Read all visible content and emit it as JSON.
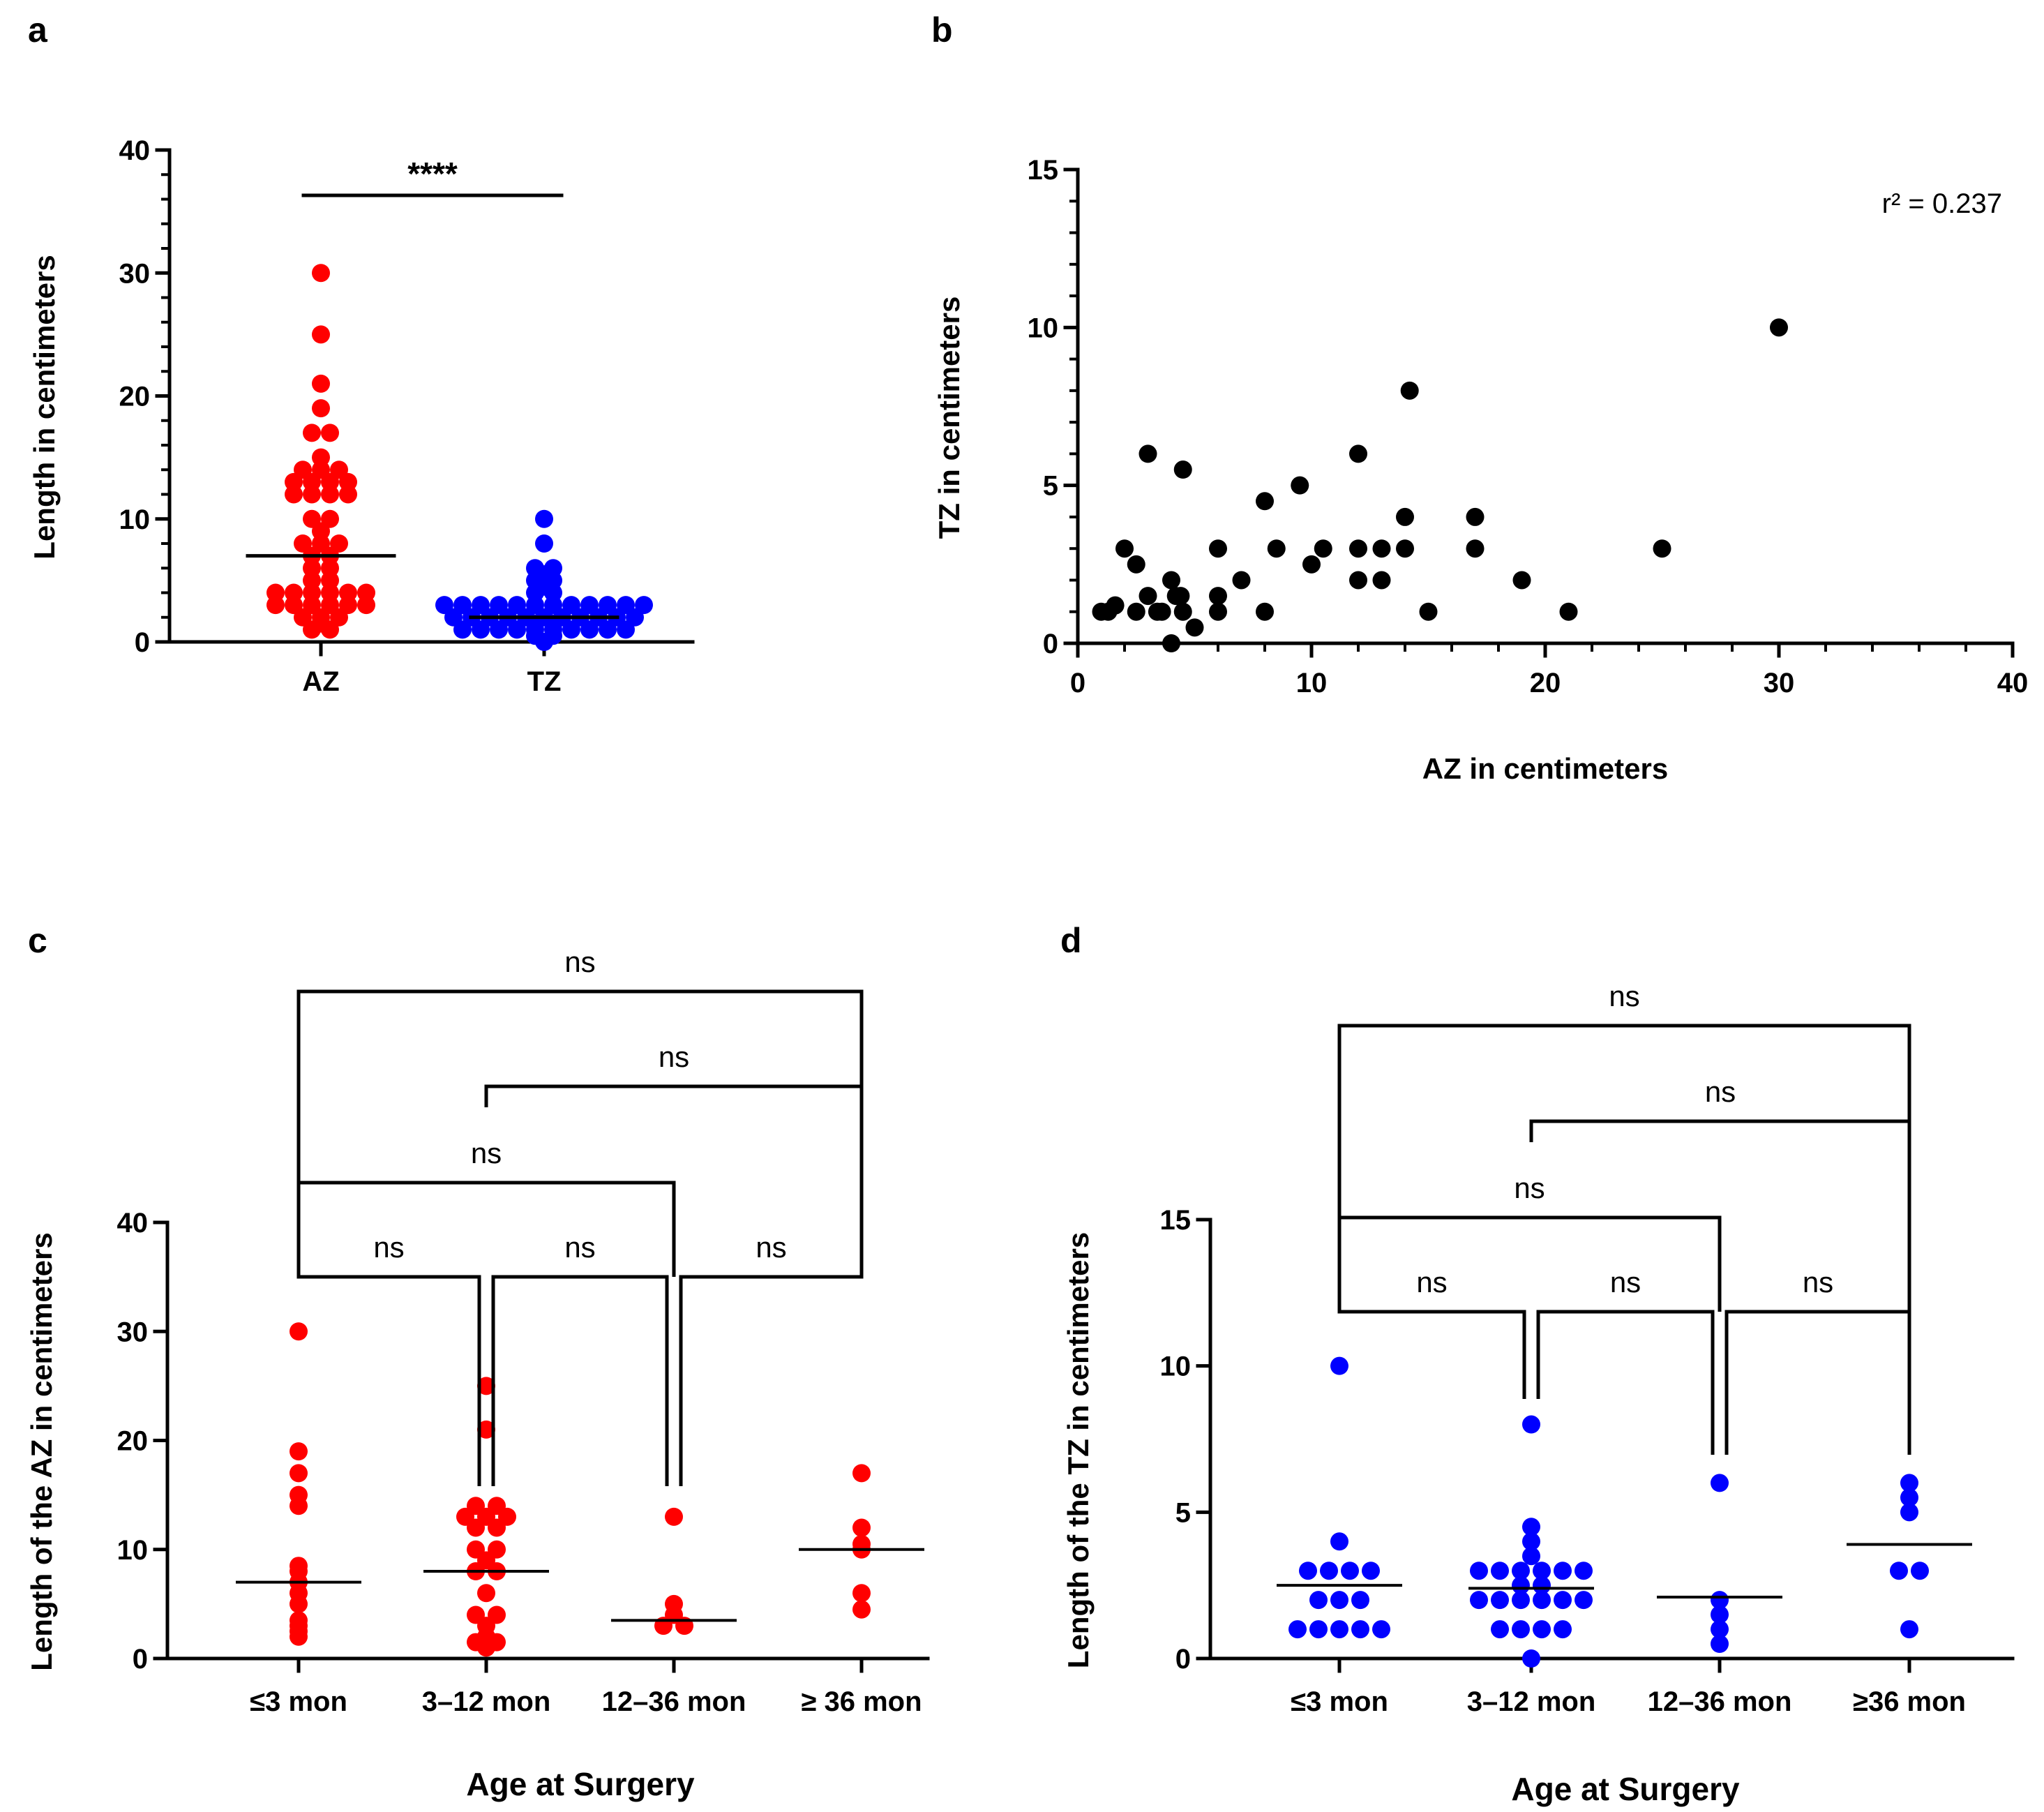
{
  "colors": {
    "az": "#ff0000",
    "tz": "#0000ff",
    "scatter": "#000000",
    "axis": "#000000"
  },
  "chart_data": [
    {
      "panel": "a",
      "type": "scatter",
      "title": "",
      "xlabel": "",
      "ylabel": "Length in centimeters",
      "ylim": [
        0,
        40
      ],
      "yticks": [
        "0",
        "10",
        "20",
        "30",
        "40"
      ],
      "categories": [
        "AZ",
        "TZ"
      ],
      "series": [
        {
          "name": "AZ",
          "color": "#ff0000",
          "median": 7,
          "values": [
            30,
            25,
            21,
            19,
            17,
            17,
            15,
            14,
            14,
            14,
            13,
            13,
            13,
            13,
            12,
            12,
            12,
            12,
            10,
            10,
            9,
            8,
            8,
            8,
            7,
            7,
            6,
            6,
            5,
            5,
            4,
            4,
            4,
            4,
            4,
            4,
            3,
            3,
            3,
            3,
            3,
            3,
            2,
            2,
            2,
            1.5,
            1,
            1
          ]
        },
        {
          "name": "TZ",
          "color": "#0000ff",
          "median": 2,
          "values": [
            10,
            8,
            6,
            6,
            5.5,
            5,
            5,
            4.5,
            4,
            4,
            3,
            3,
            3,
            3,
            3,
            3,
            3,
            3,
            3,
            3,
            3,
            3,
            2,
            2,
            2,
            2,
            2,
            2,
            2,
            2,
            2,
            2,
            2,
            1.5,
            1.5,
            1,
            1,
            1,
            1,
            1,
            1,
            1,
            1,
            1,
            1,
            0.5,
            0.5,
            0
          ]
        }
      ],
      "annotations": [
        {
          "text": "****",
          "between": [
            "AZ",
            "TZ"
          ]
        }
      ]
    },
    {
      "panel": "b",
      "type": "scatter",
      "title": "",
      "xlabel": "AZ in centimeters",
      "ylabel": "TZ in centimeters",
      "xlim": [
        0,
        40
      ],
      "ylim": [
        0,
        15
      ],
      "xticks": [
        "0",
        "10",
        "20",
        "30",
        "40"
      ],
      "yticks": [
        "0",
        "5",
        "10",
        "15"
      ],
      "annotations": [
        {
          "text": "r² = 0.237"
        }
      ],
      "points": [
        [
          1,
          1
        ],
        [
          1.3,
          1
        ],
        [
          1.6,
          1.2
        ],
        [
          2,
          3
        ],
        [
          2.5,
          2.5
        ],
        [
          2.5,
          1
        ],
        [
          3,
          6
        ],
        [
          3,
          1.5
        ],
        [
          3.4,
          1
        ],
        [
          3.6,
          1
        ],
        [
          4,
          2
        ],
        [
          4,
          0
        ],
        [
          4.2,
          1.5
        ],
        [
          4.4,
          1.5
        ],
        [
          4.5,
          5.5
        ],
        [
          4.5,
          1
        ],
        [
          5,
          0.5
        ],
        [
          6,
          3
        ],
        [
          6,
          1.5
        ],
        [
          6,
          1
        ],
        [
          7,
          2
        ],
        [
          8,
          4.5
        ],
        [
          8,
          1
        ],
        [
          8.5,
          3
        ],
        [
          9.5,
          5
        ],
        [
          10,
          2.5
        ],
        [
          10.5,
          3
        ],
        [
          12,
          6
        ],
        [
          12,
          3
        ],
        [
          12,
          2
        ],
        [
          13,
          3
        ],
        [
          13,
          2
        ],
        [
          14,
          4
        ],
        [
          14,
          3
        ],
        [
          14.2,
          8
        ],
        [
          15,
          1
        ],
        [
          17,
          4
        ],
        [
          17,
          3
        ],
        [
          19,
          2
        ],
        [
          21,
          1
        ],
        [
          25,
          3
        ],
        [
          30,
          10
        ]
      ]
    },
    {
      "panel": "c",
      "type": "scatter",
      "title": "",
      "xlabel": "Age at Surgery",
      "ylabel": "Length of the AZ in centimeters",
      "ylim": [
        0,
        40
      ],
      "yticks": [
        "0",
        "10",
        "20",
        "30",
        "40"
      ],
      "categories": [
        "≤3 mon",
        "3–12 mon",
        "12–36 mon",
        "≥ 36 mon"
      ],
      "medians": [
        7,
        8,
        3.5,
        10
      ],
      "groups": [
        [
          30,
          19,
          17,
          15,
          14,
          8.5,
          8,
          7,
          6,
          5,
          3.5,
          3,
          2.5,
          2
        ],
        [
          25,
          21,
          14,
          14,
          13,
          13,
          13,
          12,
          12,
          10,
          10,
          9,
          8,
          8,
          6,
          4,
          4,
          3,
          2,
          1.5,
          1.5,
          1
        ],
        [
          13,
          5,
          4,
          3,
          3
        ],
        [
          17,
          12,
          10.5,
          10,
          6,
          4.5
        ]
      ],
      "comparisons": [
        {
          "pair": [
            "≤3 mon",
            "3–12 mon"
          ],
          "text": "ns"
        },
        {
          "pair": [
            "3–12 mon",
            "12–36 mon"
          ],
          "text": "ns"
        },
        {
          "pair": [
            "12–36 mon",
            "≥ 36 mon"
          ],
          "text": "ns"
        },
        {
          "pair": [
            "≤3 mon",
            "12–36 mon"
          ],
          "text": "ns"
        },
        {
          "pair": [
            "3–12 mon",
            "≥ 36 mon"
          ],
          "text": "ns"
        },
        {
          "pair": [
            "≤3 mon",
            "≥ 36 mon"
          ],
          "text": "ns"
        }
      ]
    },
    {
      "panel": "d",
      "type": "scatter",
      "title": "",
      "xlabel": "Age at Surgery",
      "ylabel": "Length of the TZ in centimeters",
      "ylim": [
        0,
        15
      ],
      "yticks": [
        "0",
        "5",
        "10",
        "15"
      ],
      "categories": [
        "≤3 mon",
        "3–12 mon",
        "12–36 mon",
        "≥36 mon"
      ],
      "medians": [
        2.5,
        2.4,
        2.1,
        3.9
      ],
      "groups": [
        [
          10,
          4,
          3,
          3,
          3,
          3,
          2,
          2,
          2,
          1,
          1,
          1,
          1,
          1
        ],
        [
          8,
          4.5,
          4,
          3.5,
          3,
          3,
          3,
          3,
          3,
          3,
          2.5,
          2.5,
          2,
          2,
          2,
          2,
          2,
          2,
          1,
          1,
          1,
          1,
          0
        ],
        [
          6,
          2,
          1.5,
          1,
          0.5
        ],
        [
          6,
          5.5,
          5,
          3,
          3,
          1
        ]
      ],
      "comparisons": [
        {
          "pair": [
            "≤3 mon",
            "3–12 mon"
          ],
          "text": "ns"
        },
        {
          "pair": [
            "3–12 mon",
            "12–36 mon"
          ],
          "text": "ns"
        },
        {
          "pair": [
            "12–36 mon",
            "≥36 mon"
          ],
          "text": "ns"
        },
        {
          "pair": [
            "≤3 mon",
            "12–36 mon"
          ],
          "text": "ns"
        },
        {
          "pair": [
            "3–12 mon",
            "≥36 mon"
          ],
          "text": "ns"
        },
        {
          "pair": [
            "≤3 mon",
            "≥36 mon"
          ],
          "text": "ns"
        }
      ]
    }
  ]
}
